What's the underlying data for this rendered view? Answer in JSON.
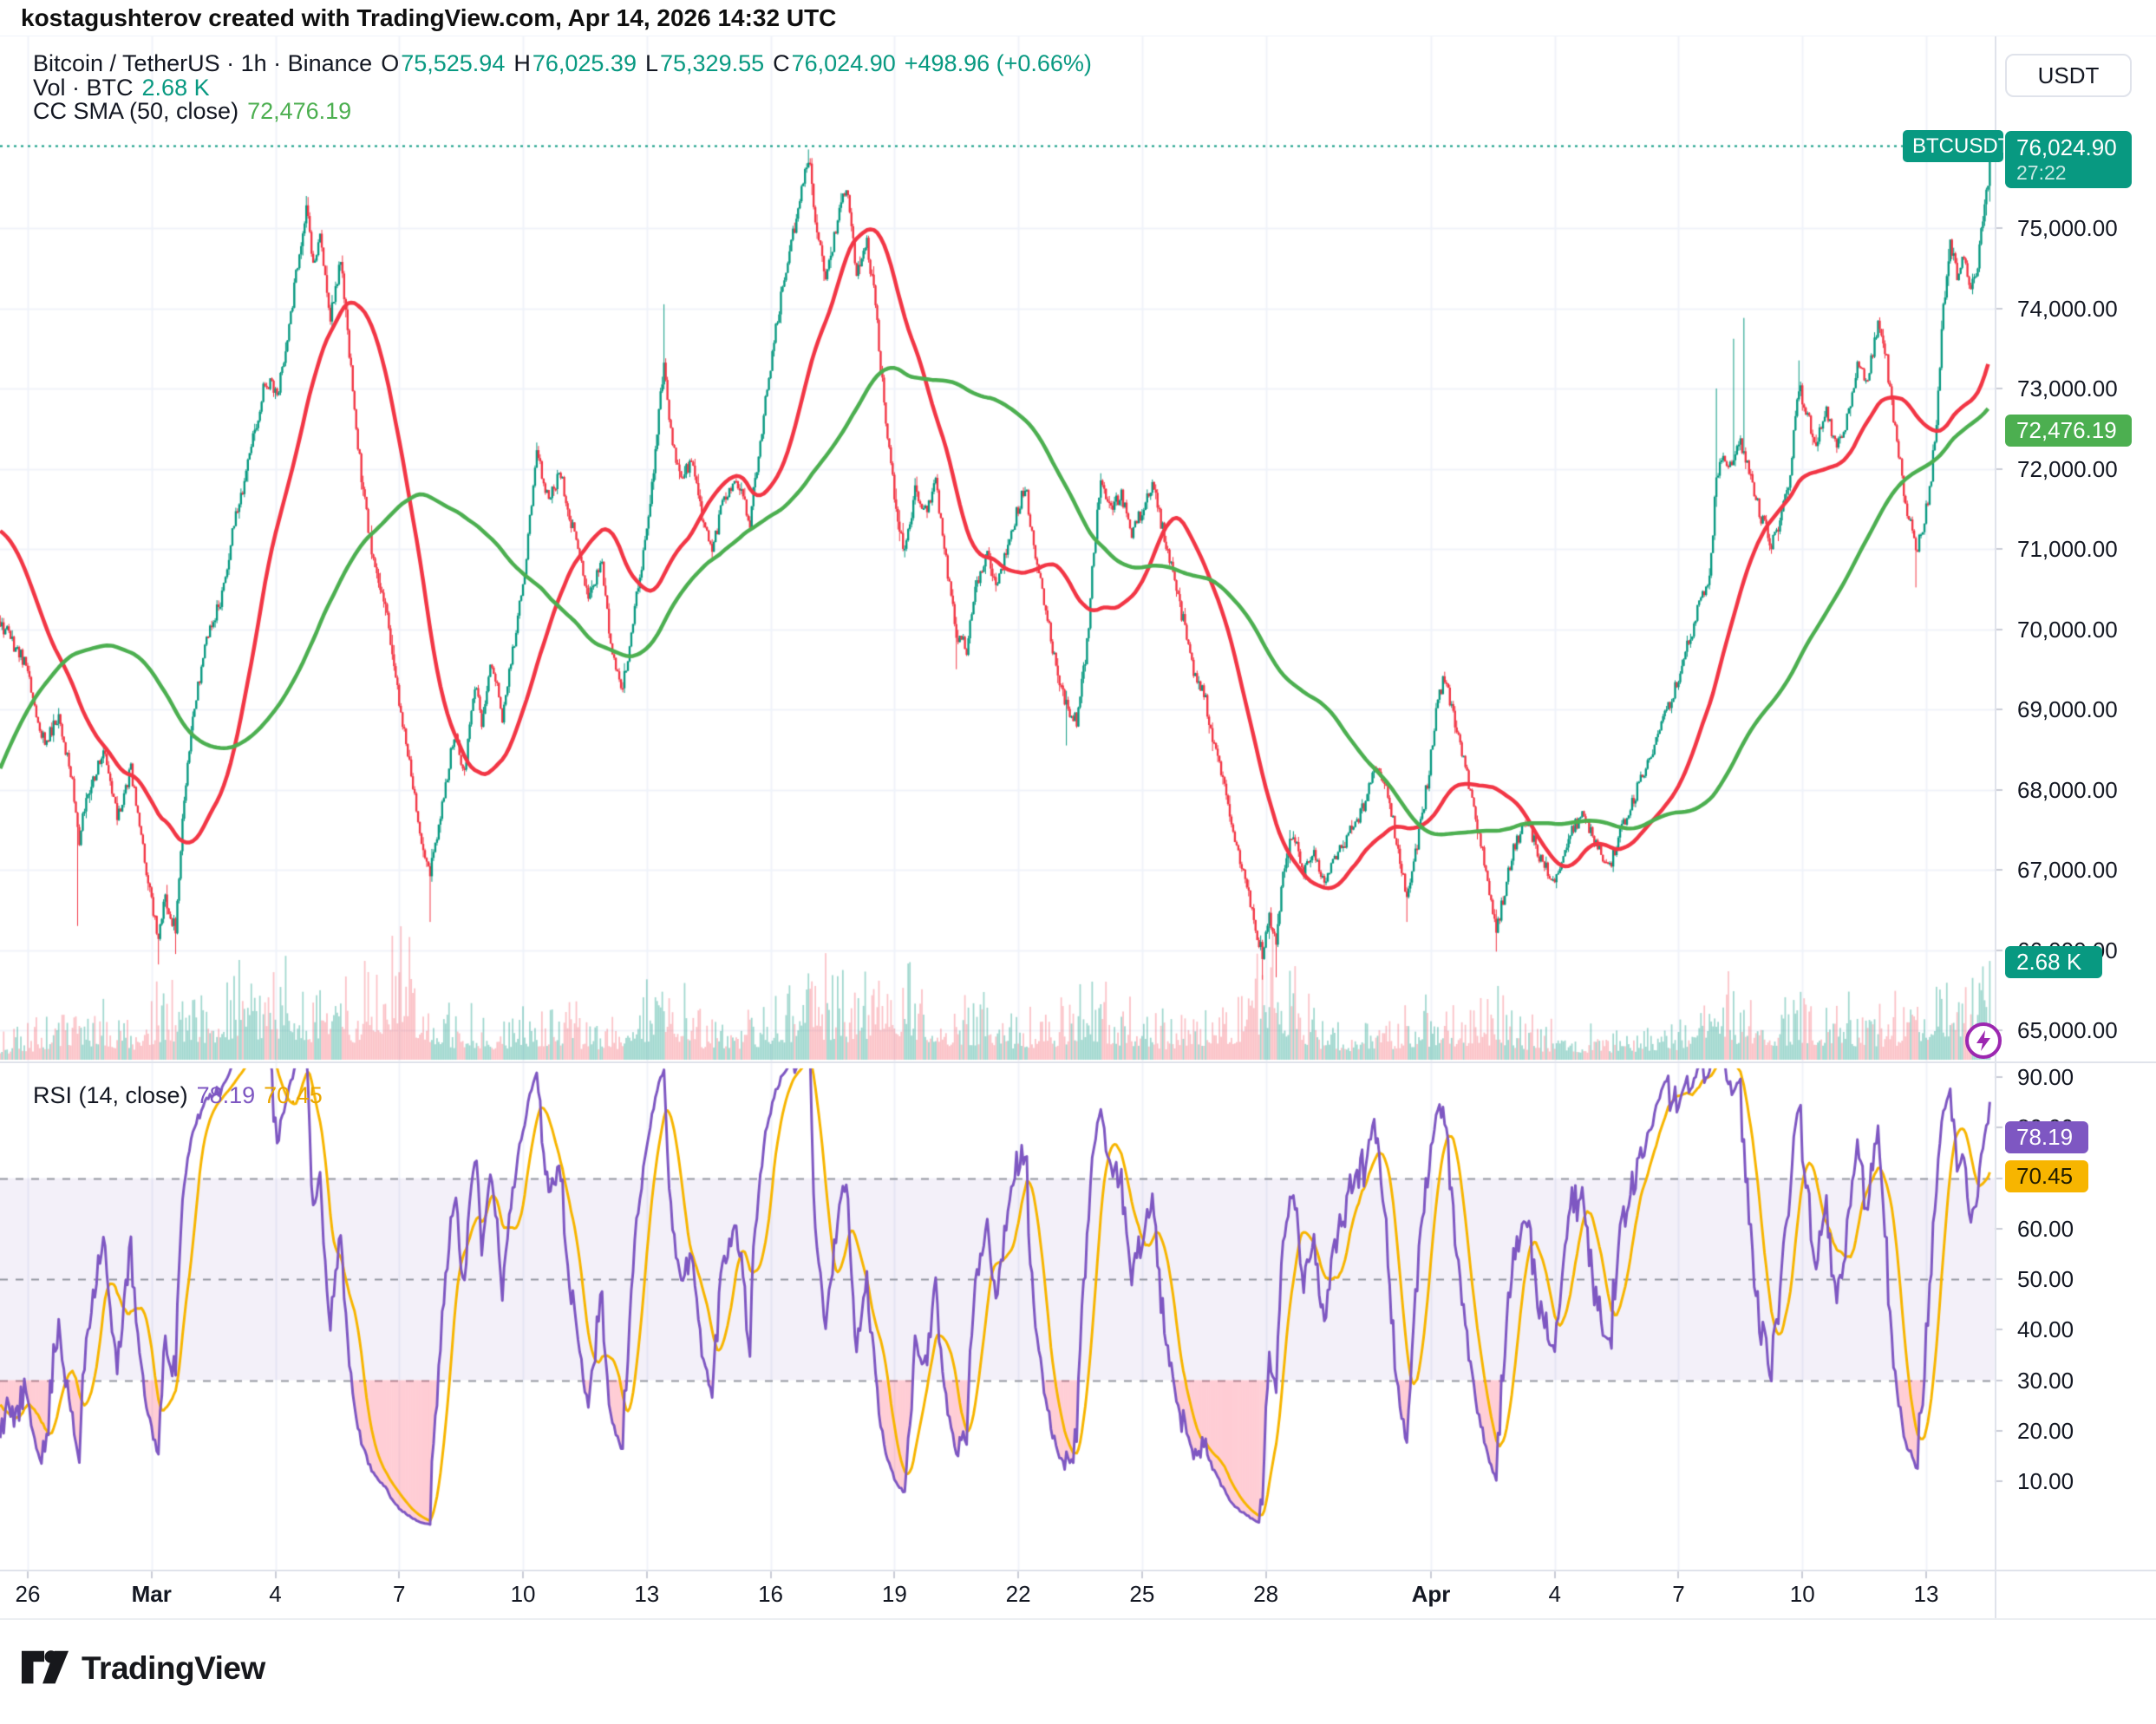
{
  "header": {
    "attribution": "kostagushterov created with TradingView.com, Apr 14, 2026 14:32 UTC"
  },
  "symbol_legend": {
    "title": "Bitcoin / TetherUS · 1h · Binance",
    "o_label": "O",
    "o": "75,525.94",
    "h_label": "H",
    "h": "76,025.39",
    "l_label": "L",
    "l": "75,329.55",
    "c_label": "C",
    "c": "76,024.90",
    "change": "+498.96 (+0.66%)"
  },
  "volume_legend": {
    "label": "Vol · BTC",
    "value": "2.68 K"
  },
  "sma_legend": {
    "label": "CC SMA (50, close)",
    "value": "72,476.19"
  },
  "rsi_legend": {
    "label": "RSI (14, close)",
    "value_rsi": "78.19",
    "value_ma": "70.45"
  },
  "currency_button": "USDT",
  "badges": {
    "symbol": "BTCUSDT",
    "price": "76,024.90",
    "countdown": "27:22",
    "sma": "72,476.19",
    "volume": "2.68 K",
    "rsi": "78.19",
    "rsi_ma": "70.45"
  },
  "price_axis": {
    "values": [
      75000,
      74000,
      73000,
      72000,
      71000,
      70000,
      69000,
      68000,
      67000,
      66000,
      65000
    ],
    "labels": [
      "75,000.00",
      "74,000.00",
      "73,000.00",
      "72,000.00",
      "71,000.00",
      "70,000.00",
      "69,000.00",
      "68,000.00",
      "67,000.00",
      "66,000.00",
      "65,000.00"
    ]
  },
  "rsi_axis": {
    "values": [
      90,
      80,
      70,
      60,
      50,
      40,
      30,
      20,
      10
    ],
    "labels": [
      "90.00",
      "80.00",
      "70.00",
      "60.00",
      "50.00",
      "40.00",
      "30.00",
      "20.00",
      "10.00"
    ]
  },
  "time_axis": {
    "labels": [
      {
        "text": "26",
        "day": 0
      },
      {
        "text": "Mar",
        "day": 3,
        "bold": true
      },
      {
        "text": "4",
        "day": 6
      },
      {
        "text": "7",
        "day": 9
      },
      {
        "text": "10",
        "day": 12
      },
      {
        "text": "13",
        "day": 15
      },
      {
        "text": "16",
        "day": 18
      },
      {
        "text": "19",
        "day": 21
      },
      {
        "text": "22",
        "day": 24
      },
      {
        "text": "25",
        "day": 27
      },
      {
        "text": "28",
        "day": 30
      },
      {
        "text": "Apr",
        "day": 34,
        "bold": true
      },
      {
        "text": "4",
        "day": 37
      },
      {
        "text": "7",
        "day": 40
      },
      {
        "text": "10",
        "day": 43
      },
      {
        "text": "13",
        "day": 46
      }
    ]
  },
  "logo": {
    "text": "TradingView"
  },
  "colors": {
    "up": "#089981",
    "down": "#f23645",
    "sma_fast": "#f23645",
    "sma_slow": "#4caf50",
    "rsi": "#7e57c2",
    "rsi_ma": "#f7b500",
    "grid": "#f0f3fa",
    "border": "#e0e3eb",
    "text": "#131722",
    "muted": "#9598a1",
    "band": "rgba(126,87,194,0.09)",
    "oversold_fill": "rgba(255,90,115,0.30)",
    "vol_up": "rgba(8,153,129,0.38)",
    "vol_down": "rgba(242,54,69,0.30)",
    "flash": "#9c27b0"
  },
  "chart_data": {
    "type": "candlestick",
    "symbol": "BTCUSDT",
    "exchange": "Binance",
    "interval": "1h",
    "visible_range": "Feb 26 - Apr 14, 2026 14:32 UTC",
    "ohlc_current": {
      "open": 75525.94,
      "high": 76025.39,
      "low": 75329.55,
      "close": 76024.9,
      "change": 498.96,
      "change_pct": 0.66
    },
    "volume_current_kbtc": 2.68,
    "sma50_value": 72476.19,
    "rsi_value": 78.19,
    "rsi_ma_value": 70.45,
    "rsi_levels": {
      "overbought": 70,
      "middle": 50,
      "oversold": 30
    },
    "price_gridlines": [
      65000,
      66000,
      67000,
      68000,
      69000,
      70000,
      71000,
      72000,
      73000,
      74000,
      75000
    ],
    "seed": 11,
    "price_keyframes": [
      [
        -220,
        59500
      ],
      [
        -160,
        62500
      ],
      [
        -120,
        65500
      ],
      [
        -80,
        69500
      ],
      [
        -50,
        72300
      ],
      [
        -30,
        70800
      ],
      [
        -16,
        70100
      ],
      [
        -8,
        69800
      ],
      [
        -1,
        69550
      ],
      [
        0,
        69400
      ],
      [
        10,
        68550
      ],
      [
        18,
        68950
      ],
      [
        26,
        68050
      ],
      [
        30,
        67350
      ],
      [
        34,
        67900
      ],
      [
        44,
        68500
      ],
      [
        52,
        67650
      ],
      [
        60,
        68250
      ],
      [
        68,
        67100
      ],
      [
        76,
        66150
      ],
      [
        80,
        66650
      ],
      [
        86,
        66250
      ],
      [
        90,
        67600
      ],
      [
        96,
        68900
      ],
      [
        104,
        69900
      ],
      [
        112,
        70350
      ],
      [
        120,
        71300
      ],
      [
        130,
        72250
      ],
      [
        138,
        73100
      ],
      [
        146,
        73000
      ],
      [
        154,
        74100
      ],
      [
        162,
        75300
      ],
      [
        166,
        74500
      ],
      [
        170,
        74900
      ],
      [
        176,
        73850
      ],
      [
        182,
        74650
      ],
      [
        188,
        73200
      ],
      [
        194,
        71900
      ],
      [
        200,
        70950
      ],
      [
        208,
        70350
      ],
      [
        214,
        69350
      ],
      [
        222,
        68350
      ],
      [
        228,
        67500
      ],
      [
        234,
        66950
      ],
      [
        240,
        67650
      ],
      [
        248,
        68700
      ],
      [
        254,
        68250
      ],
      [
        260,
        69300
      ],
      [
        264,
        68850
      ],
      [
        270,
        69600
      ],
      [
        276,
        68900
      ],
      [
        282,
        69700
      ],
      [
        290,
        70900
      ],
      [
        296,
        72250
      ],
      [
        302,
        71650
      ],
      [
        310,
        71950
      ],
      [
        318,
        71150
      ],
      [
        326,
        70450
      ],
      [
        334,
        70800
      ],
      [
        340,
        69650
      ],
      [
        346,
        69250
      ],
      [
        352,
        70100
      ],
      [
        358,
        70950
      ],
      [
        364,
        72000
      ],
      [
        370,
        73350
      ],
      [
        374,
        72450
      ],
      [
        380,
        71850
      ],
      [
        386,
        72100
      ],
      [
        392,
        71450
      ],
      [
        398,
        70950
      ],
      [
        404,
        71600
      ],
      [
        412,
        71900
      ],
      [
        420,
        71350
      ],
      [
        426,
        72350
      ],
      [
        432,
        73300
      ],
      [
        440,
        74400
      ],
      [
        448,
        75200
      ],
      [
        454,
        75900
      ],
      [
        458,
        75150
      ],
      [
        464,
        74350
      ],
      [
        470,
        75000
      ],
      [
        476,
        75500
      ],
      [
        482,
        74450
      ],
      [
        488,
        74800
      ],
      [
        492,
        74250
      ],
      [
        498,
        72800
      ],
      [
        504,
        71650
      ],
      [
        510,
        70950
      ],
      [
        516,
        71700
      ],
      [
        522,
        71500
      ],
      [
        528,
        71800
      ],
      [
        534,
        70850
      ],
      [
        540,
        69950
      ],
      [
        546,
        69750
      ],
      [
        552,
        70600
      ],
      [
        558,
        70950
      ],
      [
        564,
        70550
      ],
      [
        570,
        71100
      ],
      [
        576,
        71500
      ],
      [
        580,
        71800
      ],
      [
        586,
        70850
      ],
      [
        592,
        70250
      ],
      [
        598,
        69550
      ],
      [
        604,
        69050
      ],
      [
        610,
        68850
      ],
      [
        616,
        69800
      ],
      [
        620,
        71000
      ],
      [
        624,
        71850
      ],
      [
        630,
        71450
      ],
      [
        636,
        71700
      ],
      [
        642,
        71150
      ],
      [
        648,
        71500
      ],
      [
        654,
        71800
      ],
      [
        660,
        71250
      ],
      [
        666,
        70650
      ],
      [
        672,
        70100
      ],
      [
        678,
        69450
      ],
      [
        684,
        69200
      ],
      [
        690,
        68550
      ],
      [
        696,
        68000
      ],
      [
        702,
        67350
      ],
      [
        708,
        66900
      ],
      [
        714,
        66250
      ],
      [
        718,
        65950
      ],
      [
        722,
        66400
      ],
      [
        726,
        66050
      ],
      [
        730,
        67000
      ],
      [
        736,
        67450
      ],
      [
        742,
        66950
      ],
      [
        748,
        67250
      ],
      [
        754,
        66850
      ],
      [
        760,
        67100
      ],
      [
        768,
        67450
      ],
      [
        776,
        67750
      ],
      [
        784,
        68300
      ],
      [
        790,
        68100
      ],
      [
        796,
        67350
      ],
      [
        802,
        66650
      ],
      [
        808,
        67300
      ],
      [
        814,
        68100
      ],
      [
        820,
        69100
      ],
      [
        824,
        69400
      ],
      [
        830,
        68800
      ],
      [
        836,
        68300
      ],
      [
        842,
        67600
      ],
      [
        848,
        67000
      ],
      [
        854,
        66250
      ],
      [
        858,
        66650
      ],
      [
        864,
        67300
      ],
      [
        872,
        67600
      ],
      [
        880,
        67100
      ],
      [
        888,
        66850
      ],
      [
        896,
        67400
      ],
      [
        904,
        67700
      ],
      [
        912,
        67300
      ],
      [
        920,
        67050
      ],
      [
        928,
        67600
      ],
      [
        936,
        68000
      ],
      [
        944,
        68400
      ],
      [
        952,
        68900
      ],
      [
        960,
        69400
      ],
      [
        968,
        70000
      ],
      [
        974,
        70450
      ],
      [
        978,
        70600
      ],
      [
        982,
        71900
      ],
      [
        986,
        72200
      ],
      [
        990,
        72000
      ],
      [
        996,
        72300
      ],
      [
        1002,
        71900
      ],
      [
        1008,
        71400
      ],
      [
        1014,
        71050
      ],
      [
        1018,
        71250
      ],
      [
        1024,
        71800
      ],
      [
        1030,
        73050
      ],
      [
        1034,
        72700
      ],
      [
        1040,
        72350
      ],
      [
        1046,
        72700
      ],
      [
        1052,
        72250
      ],
      [
        1058,
        72600
      ],
      [
        1064,
        73300
      ],
      [
        1070,
        73100
      ],
      [
        1076,
        73800
      ],
      [
        1080,
        73500
      ],
      [
        1086,
        72500
      ],
      [
        1092,
        71600
      ],
      [
        1098,
        70950
      ],
      [
        1102,
        71300
      ],
      [
        1106,
        71700
      ],
      [
        1110,
        72600
      ],
      [
        1114,
        74000
      ],
      [
        1118,
        74800
      ],
      [
        1122,
        74400
      ],
      [
        1126,
        74600
      ],
      [
        1130,
        74300
      ],
      [
        1134,
        74550
      ],
      [
        1138,
        75300
      ],
      [
        1141,
        76024.9
      ]
    ],
    "volume_profile_k": [
      [
        -16,
        0.5
      ],
      [
        0,
        0.6
      ],
      [
        29,
        1.3
      ],
      [
        60,
        0.7
      ],
      [
        76,
        1.5
      ],
      [
        96,
        1.4
      ],
      [
        130,
        1.8
      ],
      [
        162,
        1.6
      ],
      [
        190,
        1.4
      ],
      [
        215,
        2.6
      ],
      [
        240,
        1.1
      ],
      [
        270,
        0.9
      ],
      [
        296,
        1.2
      ],
      [
        340,
        0.8
      ],
      [
        370,
        2.0
      ],
      [
        400,
        0.7
      ],
      [
        440,
        1.4
      ],
      [
        454,
        2.0
      ],
      [
        480,
        1.4
      ],
      [
        504,
        2.2
      ],
      [
        540,
        1.1
      ],
      [
        576,
        1.0
      ],
      [
        604,
        1.2
      ],
      [
        624,
        1.4
      ],
      [
        660,
        0.8
      ],
      [
        702,
        1.4
      ],
      [
        722,
        2.6
      ],
      [
        748,
        1.0
      ],
      [
        776,
        0.7
      ],
      [
        820,
        1.1
      ],
      [
        854,
        1.3
      ],
      [
        880,
        0.7
      ],
      [
        912,
        0.6
      ],
      [
        960,
        0.8
      ],
      [
        982,
        2.4
      ],
      [
        996,
        1.2
      ],
      [
        1030,
        1.3
      ],
      [
        1076,
        1.1
      ],
      [
        1098,
        1.3
      ],
      [
        1114,
        2.1
      ],
      [
        1126,
        1.4
      ],
      [
        1141,
        2.68
      ]
    ],
    "wick_spikes_high": [
      [
        162,
        75400
      ],
      [
        370,
        74050
      ],
      [
        454,
        75980
      ],
      [
        982,
        73000
      ],
      [
        992,
        73620
      ],
      [
        998,
        73880
      ],
      [
        1030,
        73350
      ]
    ],
    "wick_spikes_low": [
      [
        29,
        66300
      ],
      [
        76,
        65820
      ],
      [
        86,
        65950
      ],
      [
        234,
        66350
      ],
      [
        540,
        69500
      ],
      [
        604,
        68550
      ],
      [
        718,
        65630
      ],
      [
        726,
        65660
      ],
      [
        802,
        66350
      ],
      [
        854,
        65980
      ],
      [
        1098,
        70520
      ]
    ]
  }
}
